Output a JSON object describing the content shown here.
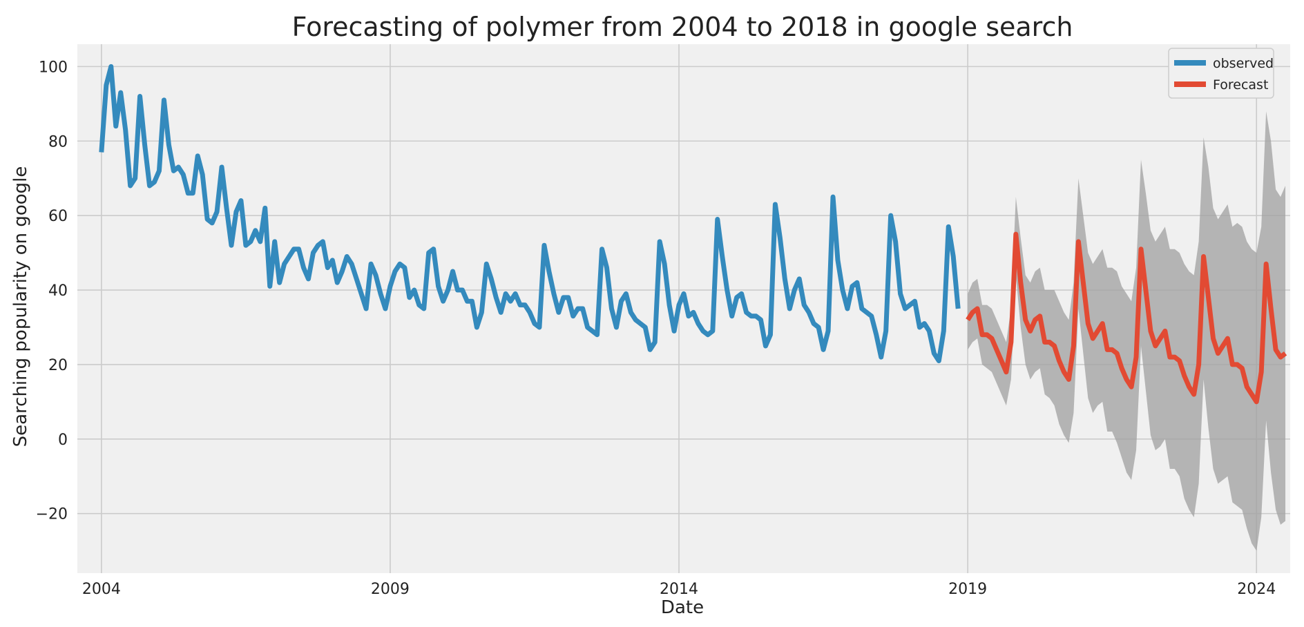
{
  "chart_data": {
    "type": "line",
    "title": "Forecasting of polymer from 2004 to 2018 in google search",
    "xlabel": "Date",
    "ylabel": "Searching popularity on google",
    "xlim": [
      "2003-08",
      "2024-08"
    ],
    "ylim": [
      -36,
      106
    ],
    "x_ticks": [
      "2004",
      "2009",
      "2014",
      "2019",
      "2024"
    ],
    "y_ticks": [
      -20,
      0,
      20,
      40,
      60,
      80,
      100
    ],
    "grid": true,
    "legend": {
      "placement": "top-right",
      "entries": [
        "observed",
        "Forecast"
      ]
    },
    "colors": {
      "observed": "#348ABD",
      "forecast": "#E24A33",
      "interval": "#A0A0A0",
      "background": "#F0F0F0",
      "grid": "#CBCBCB"
    },
    "series": [
      {
        "name": "observed",
        "start": "2004-01",
        "frequency": "monthly",
        "values": [
          77,
          95,
          100,
          84,
          93,
          83,
          68,
          70,
          92,
          79,
          68,
          69,
          72,
          91,
          79,
          72,
          73,
          71,
          66,
          66,
          76,
          71,
          59,
          58,
          61,
          73,
          62,
          52,
          61,
          64,
          52,
          53,
          56,
          53,
          62,
          41,
          53,
          42,
          47,
          49,
          51,
          51,
          46,
          43,
          50,
          52,
          53,
          46,
          48,
          42,
          45,
          49,
          47,
          43,
          39,
          35,
          47,
          44,
          39,
          35,
          41,
          45,
          47,
          46,
          38,
          40,
          36,
          35,
          50,
          51,
          41,
          37,
          40,
          45,
          40,
          40,
          37,
          37,
          30,
          34,
          47,
          43,
          38,
          34,
          39,
          37,
          39,
          36,
          36,
          34,
          31,
          30,
          52,
          45,
          39,
          34,
          38,
          38,
          33,
          35,
          35,
          30,
          29,
          28,
          51,
          46,
          35,
          30,
          37,
          39,
          34,
          32,
          31,
          30,
          24,
          26,
          53,
          47,
          36,
          29,
          36,
          39,
          33,
          34,
          31,
          29,
          28,
          29,
          59,
          49,
          40,
          33,
          38,
          39,
          34,
          33,
          33,
          32,
          25,
          28,
          63,
          54,
          43,
          35,
          40,
          43,
          36,
          34,
          31,
          30,
          24,
          29,
          65,
          48,
          40,
          35,
          41,
          42,
          35,
          34,
          33,
          28,
          22,
          29,
          60,
          53,
          39,
          35,
          36,
          37,
          30,
          31,
          29,
          23,
          21,
          29,
          57,
          49,
          35
        ]
      },
      {
        "name": "Forecast",
        "start": "2019-01",
        "frequency": "monthly",
        "values": [
          32,
          34,
          35,
          28,
          28,
          27,
          24,
          21,
          18,
          26,
          55,
          42,
          32,
          29,
          32,
          33,
          26,
          26,
          25,
          21,
          18,
          16,
          25,
          53,
          42,
          31,
          27,
          29,
          31,
          24,
          24,
          23,
          19,
          16,
          14,
          22,
          51,
          40,
          29,
          25,
          27,
          29,
          22,
          22,
          21,
          17,
          14,
          12,
          20,
          49,
          38,
          27,
          23,
          25,
          27,
          20,
          20,
          19,
          14,
          12,
          10,
          18,
          47,
          35,
          24,
          22,
          23
        ]
      }
    ],
    "confidence_interval": {
      "series": "Forecast",
      "lower": [
        24,
        26,
        27,
        20,
        19,
        18,
        15,
        12,
        9,
        16,
        44,
        30,
        20,
        16,
        18,
        19,
        12,
        11,
        9,
        4,
        1,
        -1,
        7,
        35,
        23,
        11,
        7,
        9,
        10,
        2,
        2,
        -1,
        -5,
        -9,
        -11,
        -3,
        25,
        13,
        1,
        -3,
        -2,
        0,
        -8,
        -8,
        -10,
        -16,
        -19,
        -21,
        -12,
        16,
        3,
        -8,
        -12,
        -11,
        -10,
        -17,
        -18,
        -19,
        -24,
        -28,
        -30,
        -21,
        5,
        -9,
        -19,
        -23,
        -22
      ],
      "upper": [
        39,
        42,
        43,
        36,
        36,
        35,
        32,
        29,
        26,
        35,
        65,
        54,
        44,
        42,
        45,
        46,
        40,
        40,
        40,
        37,
        34,
        32,
        42,
        70,
        60,
        50,
        47,
        49,
        51,
        46,
        46,
        45,
        41,
        39,
        37,
        46,
        75,
        66,
        56,
        53,
        55,
        57,
        51,
        51,
        50,
        47,
        45,
        44,
        53,
        81,
        73,
        62,
        59,
        61,
        63,
        57,
        58,
        57,
        53,
        51,
        50,
        57,
        88,
        80,
        67,
        65,
        68
      ]
    }
  }
}
